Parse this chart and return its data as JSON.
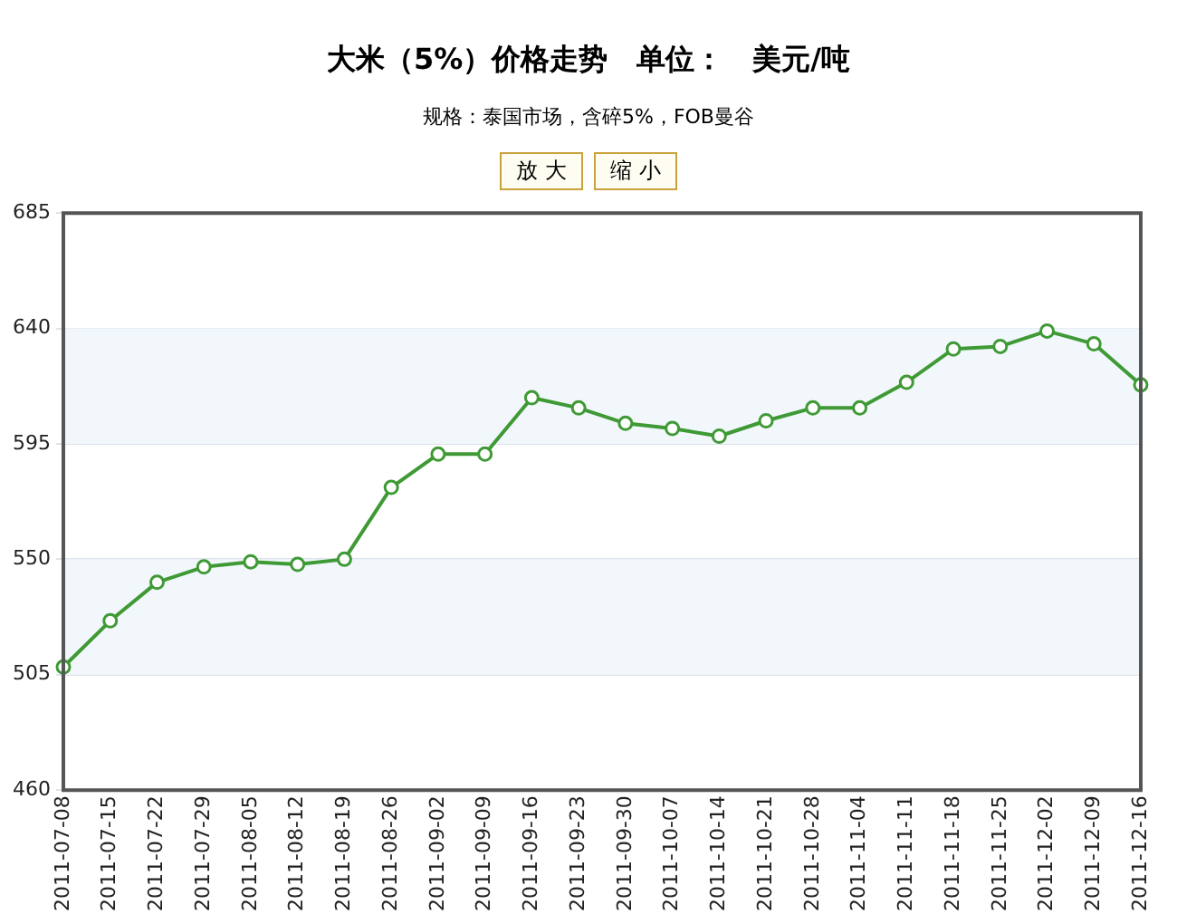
{
  "chart_data": {
    "type": "line",
    "title": "大米（5%）价格走势　单位：　美元/吨",
    "subtitle": "规格：泰国市场，含碎5%，FOB曼谷",
    "annotations": [
      "放 大",
      "缩 小"
    ],
    "categories": [
      "2011-07-08",
      "2011-07-15",
      "2011-07-22",
      "2011-07-29",
      "2011-08-05",
      "2011-08-12",
      "2011-08-19",
      "2011-08-26",
      "2011-09-02",
      "2011-09-09",
      "2011-09-16",
      "2011-09-23",
      "2011-09-30",
      "2011-10-07",
      "2011-10-14",
      "2011-10-21",
      "2011-10-28",
      "2011-11-04",
      "2011-11-11",
      "2011-11-18",
      "2011-11-25",
      "2011-12-02",
      "2011-12-09",
      "2011-12-16"
    ],
    "series": [
      {
        "color": "#3f9a35",
        "values": [
          508,
          526,
          541,
          547,
          549,
          548,
          550,
          578,
          591,
          591,
          613,
          609,
          603,
          601,
          598,
          604,
          609,
          609,
          619,
          632,
          633,
          639,
          634,
          618
        ]
      }
    ],
    "ylim": [
      460,
      685
    ],
    "yticks": [
      460,
      505,
      550,
      595,
      640,
      685
    ],
    "bands": [
      {
        "axis": "y",
        "from": 505,
        "to": 550,
        "color": "#f2f7fc"
      },
      {
        "axis": "y",
        "from": 595,
        "to": 640,
        "color": "#f2f7fc"
      }
    ],
    "grid": "y",
    "marker": "circle",
    "line_style": "solid",
    "legend": false
  }
}
